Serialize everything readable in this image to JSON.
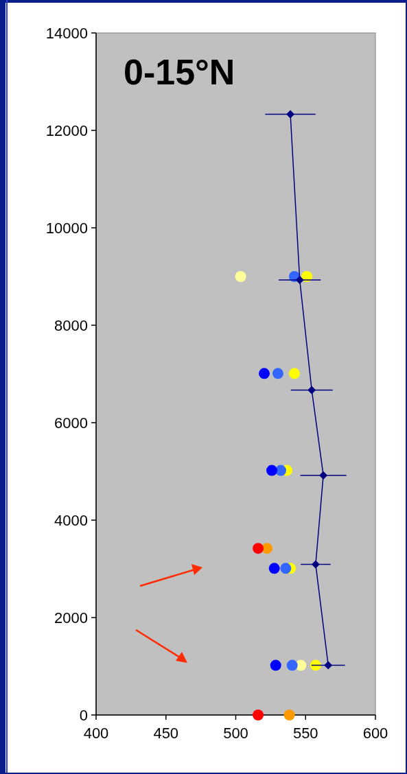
{
  "chart_data": {
    "type": "scatter",
    "title": "0-15°N",
    "xlim": [
      400,
      600
    ],
    "xticks": [
      400,
      450,
      500,
      550,
      600
    ],
    "ylim": [
      0,
      14000
    ],
    "yticks": [
      0,
      2000,
      4000,
      6000,
      8000,
      10000,
      12000,
      14000
    ],
    "grid": false,
    "marker": "circle",
    "series": [
      {
        "color": "#ffff00",
        "x": [
          550.9,
          542.0,
          536.6,
          539.1,
          557.2
        ],
        "values": [
          9000,
          7010,
          5020,
          3010,
          1020
        ]
      },
      {
        "color": "#ffff99",
        "x": [
          503.5,
          null,
          null,
          546.6
        ],
        "values": [
          9000,
          null,
          null,
          1020
        ]
      },
      {
        "color": "#3366ff",
        "x": [
          542.0,
          530.2,
          532.2,
          535.8,
          540.4
        ],
        "values": [
          9000,
          7010,
          5020,
          3010,
          1020
        ]
      },
      {
        "color": "#0000ff",
        "x": [
          520.4,
          525.8,
          527.6,
          528.6
        ],
        "values": [
          7010,
          5020,
          3010,
          1020
        ]
      },
      {
        "color": "#ff9900",
        "x": [
          522.4,
          538.4
        ],
        "values": [
          3420,
          0
        ]
      },
      {
        "color": "#ff0000",
        "x": [
          516.0,
          516.0
        ],
        "values": [
          3420,
          0
        ]
      },
      {
        "type": "line",
        "color": "#000080",
        "marker": "diamond",
        "line_style": "solid",
        "x": [
          539.1,
          545.8,
          554.4,
          562.7,
          557.2,
          566.2
        ],
        "values": [
          12330,
          8930,
          6670,
          4920,
          3090,
          1020
        ],
        "xerrors": [
          18,
          15,
          15,
          16.5,
          10.7,
          12
        ]
      }
    ]
  }
}
